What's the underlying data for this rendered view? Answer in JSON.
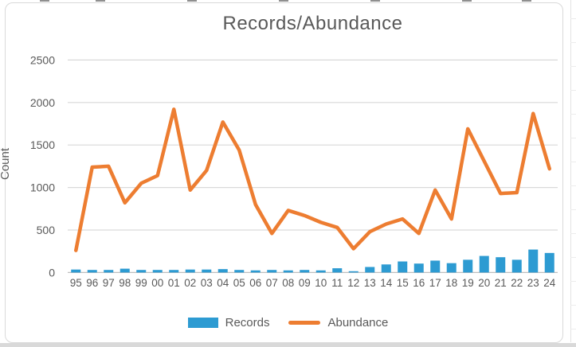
{
  "title": "Records/Abundance",
  "y_axis": {
    "label": "Count",
    "tick_labels": [
      "0",
      "500",
      "1000",
      "1500",
      "2000",
      "2500"
    ]
  },
  "legend": [
    {
      "label": "Records",
      "swatch": "bar",
      "color": "#2d9bd2"
    },
    {
      "label": "Abundance",
      "swatch": "line",
      "color": "#ed7d31"
    }
  ],
  "colors": {
    "bar": "#2d9bd2",
    "line": "#ed7d31",
    "text": "#595959",
    "gridline": "#d9d9d9",
    "axis_line": "#bfbfbf",
    "chart_border": "#d9d9d9"
  },
  "chart_data": {
    "type": "bar",
    "title": "Records/Abundance",
    "xlabel": "",
    "ylabel": "Count",
    "ylim": [
      0,
      2500
    ],
    "ytick_step": 500,
    "grid": true,
    "legend_position": "bottom",
    "categories": [
      "95",
      "96",
      "97",
      "98",
      "99",
      "00",
      "01",
      "02",
      "03",
      "04",
      "05",
      "06",
      "07",
      "08",
      "09",
      "10",
      "11",
      "12",
      "13",
      "14",
      "15",
      "16",
      "17",
      "18",
      "19",
      "20",
      "21",
      "22",
      "23",
      "24"
    ],
    "series": [
      {
        "name": "Records",
        "type": "bar",
        "color": "#2d9bd2",
        "values": [
          35,
          30,
          30,
          45,
          30,
          30,
          30,
          35,
          35,
          40,
          30,
          25,
          30,
          25,
          30,
          25,
          50,
          15,
          65,
          95,
          130,
          105,
          140,
          110,
          150,
          195,
          180,
          150,
          270,
          230
        ]
      },
      {
        "name": "Abundance",
        "type": "line",
        "color": "#ed7d31",
        "values": [
          260,
          1240,
          1250,
          820,
          1050,
          1140,
          1920,
          970,
          1200,
          1770,
          1440,
          800,
          460,
          730,
          670,
          590,
          530,
          280,
          480,
          570,
          630,
          460,
          970,
          630,
          1690,
          1310,
          930,
          940,
          1870,
          1220
        ]
      }
    ]
  }
}
